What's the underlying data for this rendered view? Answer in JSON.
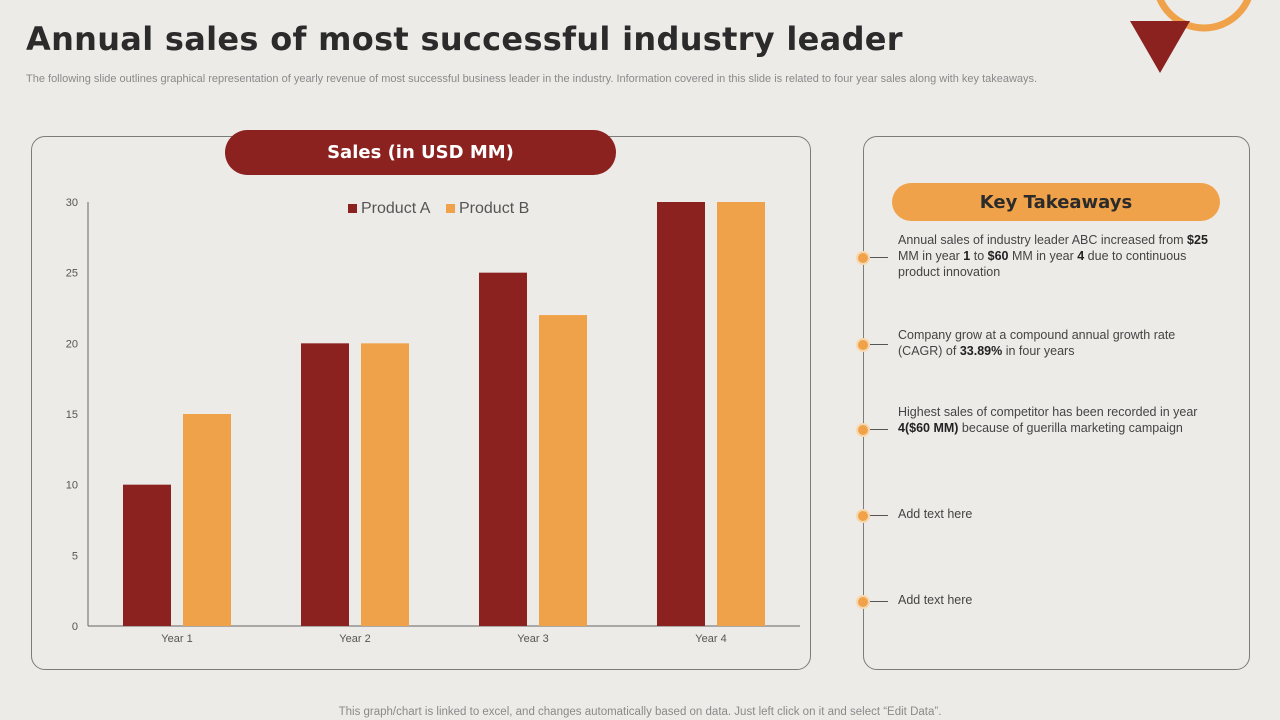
{
  "header": {
    "title": "Annual sales of most successful industry leader",
    "subtitle": "The following slide outlines graphical representation of yearly revenue of most successful business leader in the industry. Information covered in this slide is related to four year sales along with key takeaways."
  },
  "colors": {
    "product_a": "#8b2220",
    "product_b": "#f0a24a",
    "accent": "#f0a24a"
  },
  "chart_data": {
    "type": "bar",
    "title": "Sales (in USD MM)",
    "categories": [
      "Year 1",
      "Year 2",
      "Year 3",
      "Year 4"
    ],
    "series": [
      {
        "name": "Product A",
        "values": [
          10,
          20,
          25,
          30
        ]
      },
      {
        "name": "Product B",
        "values": [
          15,
          20,
          22,
          30
        ]
      }
    ],
    "yticks": [
      0,
      5,
      10,
      15,
      20,
      25,
      30
    ],
    "ylim": [
      0,
      30
    ],
    "xlabel": "",
    "ylabel": "",
    "legend": "top-center",
    "grid": false
  },
  "takeaways": {
    "title": "Key Takeaways",
    "items": [
      {
        "parts": [
          {
            "t": "Annual sales of industry leader ABC increased from "
          },
          {
            "t": "$25",
            "b": true
          },
          {
            "t": " MM in year "
          },
          {
            "t": "1",
            "b": true
          },
          {
            "t": " to "
          },
          {
            "t": "$60",
            "b": true
          },
          {
            "t": " MM in year "
          },
          {
            "t": "4",
            "b": true
          },
          {
            "t": " due to continuous product innovation"
          }
        ]
      },
      {
        "parts": [
          {
            "t": "Company grow at a compound annual growth rate (CAGR) of "
          },
          {
            "t": "33.89%",
            "b": true
          },
          {
            "t": " in four years"
          }
        ]
      },
      {
        "parts": [
          {
            "t": "Highest sales of competitor has been recorded in year "
          },
          {
            "t": "4($60 MM)",
            "b": true
          },
          {
            "t": " because of guerilla marketing campaign"
          }
        ]
      },
      {
        "parts": [
          {
            "t": "Add text here"
          }
        ]
      },
      {
        "parts": [
          {
            "t": "Add text here"
          }
        ]
      }
    ]
  },
  "footer": {
    "note": "This graph/chart is linked to excel,  and changes automatically based on data. Just left click on it and select “Edit Data”."
  }
}
